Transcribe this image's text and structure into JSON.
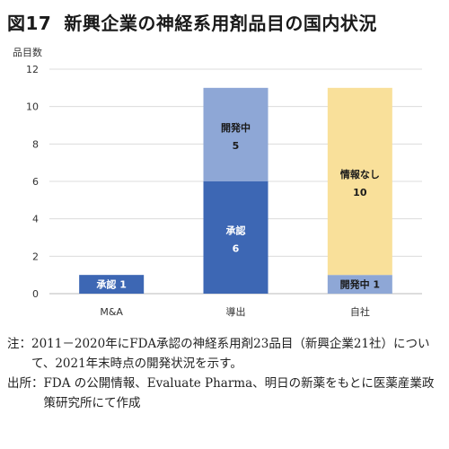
{
  "title": {
    "label": "図17",
    "text": "新興企業の神経系用剤品目の国内状況"
  },
  "chart_data": {
    "type": "bar",
    "stacked": true,
    "ylabel": "品目数",
    "ylim": [
      0,
      12
    ],
    "yticks": [
      0,
      2,
      4,
      6,
      8,
      10,
      12
    ],
    "grid": true,
    "categories": [
      "M&A",
      "導出",
      "自社"
    ],
    "segments": [
      [
        {
          "label": "承認",
          "value": 1,
          "color": "#3d67b4",
          "text_color": "#ffffff"
        }
      ],
      [
        {
          "label": "承認",
          "value": 6,
          "color": "#3d67b4",
          "text_color": "#ffffff"
        },
        {
          "label": "開発中",
          "value": 5,
          "color": "#8ea7d6",
          "text_color": "#1a1a1a"
        }
      ],
      [
        {
          "label": "開発中",
          "value": 1,
          "color": "#8ea7d6",
          "text_color": "#1a1a1a"
        },
        {
          "label": "情報なし",
          "value": 10,
          "color": "#f9e09a",
          "text_color": "#1a1a1a"
        }
      ]
    ]
  },
  "notes": [
    {
      "label": "注：",
      "text": "2011－2020年にFDA承認の神経系用剤23品目（新興企業21社）について、2021年末時点の開発状況を示す。"
    },
    {
      "label": "出所：",
      "text": "FDA の公開情報、Evaluate Pharma、明日の新薬をもとに医薬産業政策研究所にて作成"
    }
  ]
}
